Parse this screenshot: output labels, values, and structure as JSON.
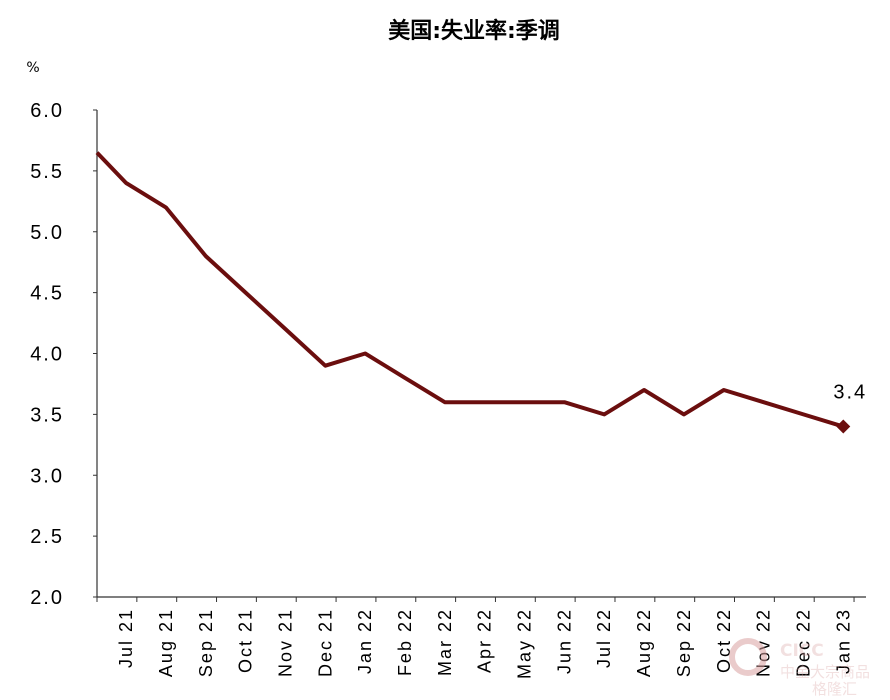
{
  "chart_data": {
    "type": "line",
    "title": "美国:失业率:季调",
    "ylabel": "%",
    "xlabel": "",
    "categories": [
      "Jul 21",
      "Aug 21",
      "Sep 21",
      "Oct 21",
      "Nov 21",
      "Dec 21",
      "Jan 22",
      "Feb 22",
      "Mar 22",
      "Apr 22",
      "May 22",
      "Jun 22",
      "Jul 22",
      "Aug 22",
      "Sep 22",
      "Oct 22",
      "Nov 22",
      "Dec 22",
      "Jan 23"
    ],
    "series": [
      {
        "values": [
          5.4,
          5.2,
          4.8,
          4.5,
          4.2,
          3.9,
          4.0,
          3.8,
          3.6,
          3.6,
          3.6,
          3.6,
          3.5,
          3.7,
          3.5,
          3.7,
          3.6,
          3.5,
          3.4
        ],
        "color": "#6b0e0e"
      }
    ],
    "leading_value": 5.65,
    "end_label": "3.4",
    "ylim": [
      2.0,
      6.0
    ],
    "yticks": [
      "2.0",
      "2.5",
      "3.0",
      "3.5",
      "4.0",
      "4.5",
      "5.0",
      "5.5",
      "6.0"
    ],
    "grid": false,
    "legend": "none"
  },
  "watermark": {
    "brand": "CICC",
    "subtitle": "中金大宗商品",
    "corner": "格隆汇"
  }
}
